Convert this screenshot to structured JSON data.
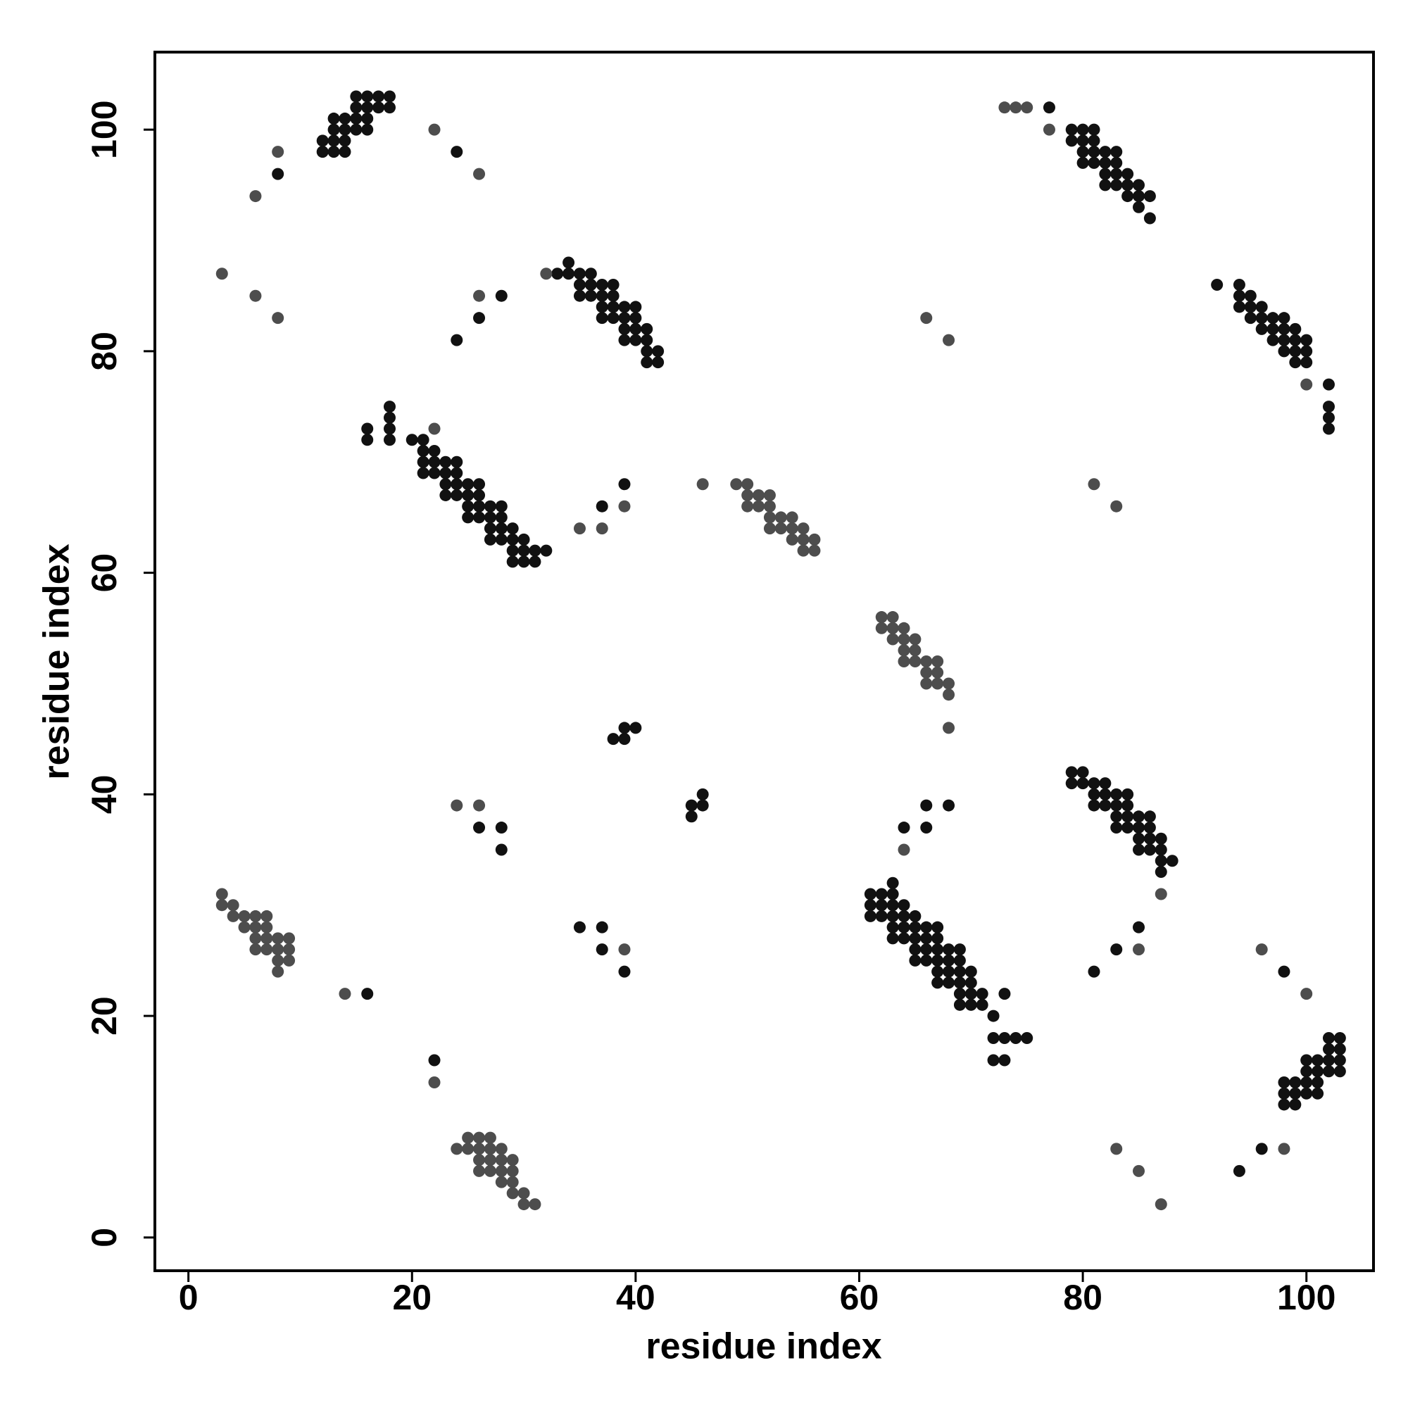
{
  "chart_data": {
    "type": "scatter",
    "xlabel": "residue index",
    "ylabel": "residue index",
    "xlim": [
      -3,
      106
    ],
    "ylim": [
      -3,
      107
    ],
    "xticks": [
      0,
      20,
      40,
      60,
      80,
      100
    ],
    "yticks": [
      0,
      20,
      40,
      60,
      80,
      100
    ],
    "series": [
      {
        "color": "#111111",
        "x": [
          12,
          13,
          14,
          12,
          13,
          14,
          13,
          14,
          15,
          16,
          13,
          14,
          15,
          16,
          15,
          16,
          17,
          18,
          15,
          16,
          17,
          18,
          8,
          24,
          28,
          26,
          24,
          77,
          34,
          33,
          34,
          35,
          36,
          35,
          36,
          37,
          38,
          35,
          36,
          37,
          38,
          37,
          38,
          39,
          40,
          37,
          38,
          39,
          40,
          39,
          40,
          41,
          39,
          40,
          41,
          41,
          42,
          41,
          42,
          79,
          80,
          81,
          79,
          80,
          81,
          80,
          81,
          82,
          83,
          80,
          81,
          82,
          83,
          82,
          83,
          84,
          82,
          83,
          84,
          85,
          84,
          85,
          86,
          85,
          86,
          92,
          94,
          94,
          95,
          94,
          95,
          96,
          95,
          96,
          97,
          98,
          96,
          97,
          98,
          99,
          97,
          98,
          99,
          100,
          98,
          99,
          100,
          99,
          100,
          102,
          102,
          102,
          102,
          16,
          16,
          18,
          18,
          18,
          18,
          20,
          21,
          21,
          22,
          21,
          22,
          23,
          24,
          21,
          22,
          23,
          24,
          23,
          24,
          25,
          26,
          23,
          24,
          25,
          26,
          25,
          26,
          27,
          28,
          25,
          26,
          27,
          28,
          27,
          28,
          29,
          27,
          28,
          29,
          30,
          29,
          30,
          31,
          32,
          29,
          30,
          31,
          37,
          39,
          38,
          39,
          39,
          40,
          45,
          45,
          46,
          46,
          26,
          28,
          28,
          66,
          68,
          64,
          66,
          85,
          83,
          81,
          16,
          22,
          37,
          37,
          39,
          35,
          94,
          96,
          98,
          79,
          80,
          79,
          80,
          81,
          82,
          81,
          82,
          83,
          84,
          81,
          82,
          83,
          84,
          83,
          84,
          85,
          86,
          83,
          84,
          85,
          86,
          85,
          86,
          87,
          85,
          86,
          87,
          87,
          88,
          87,
          63,
          61,
          62,
          63,
          61,
          62,
          63,
          64,
          61,
          62,
          63,
          64,
          65,
          63,
          64,
          65,
          66,
          67,
          63,
          64,
          65,
          66,
          67,
          65,
          66,
          67,
          68,
          69,
          65,
          66,
          67,
          68,
          69,
          67,
          68,
          69,
          70,
          67,
          68,
          69,
          70,
          69,
          70,
          71,
          73,
          69,
          70,
          71,
          72,
          72,
          73,
          74,
          75,
          72,
          73,
          102,
          103,
          102,
          103,
          100,
          101,
          102,
          103,
          100,
          101,
          102,
          103,
          98,
          99,
          100,
          101,
          98,
          99,
          100,
          101,
          98,
          99
        ],
        "y": [
          98,
          98,
          98,
          99,
          99,
          99,
          100,
          100,
          100,
          100,
          101,
          101,
          101,
          101,
          102,
          102,
          102,
          102,
          103,
          103,
          103,
          103,
          96,
          98,
          85,
          83,
          81,
          102,
          88,
          87,
          87,
          87,
          87,
          86,
          86,
          86,
          86,
          85,
          85,
          85,
          85,
          84,
          84,
          84,
          84,
          83,
          83,
          83,
          83,
          82,
          82,
          82,
          81,
          81,
          81,
          80,
          80,
          79,
          79,
          100,
          100,
          100,
          99,
          99,
          99,
          98,
          98,
          98,
          98,
          97,
          97,
          97,
          97,
          96,
          96,
          96,
          95,
          95,
          95,
          95,
          94,
          94,
          94,
          93,
          92,
          86,
          86,
          85,
          85,
          84,
          84,
          84,
          83,
          83,
          83,
          83,
          82,
          82,
          82,
          82,
          81,
          81,
          81,
          81,
          80,
          80,
          80,
          79,
          79,
          77,
          75,
          74,
          73,
          73,
          72,
          75,
          74,
          73,
          72,
          72,
          72,
          71,
          71,
          70,
          70,
          70,
          70,
          69,
          69,
          69,
          69,
          68,
          68,
          68,
          68,
          67,
          67,
          67,
          67,
          66,
          66,
          66,
          66,
          65,
          65,
          65,
          65,
          64,
          64,
          64,
          63,
          63,
          63,
          63,
          62,
          62,
          62,
          62,
          61,
          61,
          61,
          66,
          68,
          45,
          45,
          46,
          46,
          39,
          38,
          40,
          39,
          37,
          37,
          35,
          39,
          39,
          37,
          37,
          28,
          26,
          24,
          22,
          16,
          28,
          26,
          24,
          28,
          6,
          8,
          24,
          42,
          42,
          41,
          41,
          41,
          41,
          40,
          40,
          40,
          40,
          39,
          39,
          39,
          39,
          38,
          38,
          38,
          38,
          37,
          37,
          37,
          37,
          36,
          36,
          36,
          35,
          35,
          35,
          34,
          34,
          33,
          32,
          31,
          31,
          31,
          30,
          30,
          30,
          30,
          29,
          29,
          29,
          29,
          29,
          28,
          28,
          28,
          28,
          28,
          27,
          27,
          27,
          27,
          27,
          26,
          26,
          26,
          26,
          26,
          25,
          25,
          25,
          25,
          25,
          24,
          24,
          24,
          24,
          23,
          23,
          23,
          23,
          22,
          22,
          22,
          22,
          21,
          21,
          21,
          20,
          18,
          18,
          18,
          18,
          16,
          16,
          18,
          18,
          17,
          17,
          16,
          16,
          16,
          16,
          15,
          15,
          15,
          15,
          14,
          14,
          14,
          14,
          13,
          13,
          13,
          13,
          12,
          12
        ]
      },
      {
        "color": "#4d4d4d",
        "x": [
          8,
          6,
          22,
          26,
          3,
          6,
          8,
          26,
          32,
          73,
          74,
          75,
          77,
          100,
          66,
          68,
          22,
          35,
          37,
          39,
          46,
          68,
          81,
          83,
          24,
          26,
          64,
          85,
          39,
          14,
          22,
          83,
          85,
          87,
          98,
          96,
          100,
          87,
          49,
          50,
          50,
          51,
          52,
          50,
          51,
          52,
          52,
          53,
          54,
          52,
          53,
          54,
          55,
          54,
          55,
          56,
          55,
          56,
          62,
          63,
          62,
          63,
          64,
          63,
          64,
          65,
          64,
          65,
          64,
          65,
          66,
          67,
          66,
          67,
          66,
          67,
          68,
          68,
          3,
          3,
          4,
          4,
          5,
          6,
          7,
          5,
          6,
          7,
          6,
          7,
          8,
          9,
          6,
          7,
          8,
          9,
          8,
          9,
          8,
          25,
          26,
          27,
          24,
          25,
          26,
          27,
          28,
          26,
          27,
          28,
          29,
          26,
          27,
          28,
          29,
          28,
          29,
          29,
          30,
          30,
          31
        ],
        "y": [
          98,
          94,
          100,
          96,
          87,
          85,
          83,
          85,
          87,
          102,
          102,
          102,
          100,
          77,
          83,
          81,
          73,
          64,
          64,
          66,
          68,
          46,
          68,
          66,
          39,
          39,
          35,
          26,
          26,
          22,
          14,
          8,
          6,
          3,
          8,
          26,
          22,
          31,
          68,
          68,
          67,
          67,
          67,
          66,
          66,
          66,
          65,
          65,
          65,
          64,
          64,
          64,
          64,
          63,
          63,
          63,
          62,
          62,
          56,
          56,
          55,
          55,
          55,
          54,
          54,
          54,
          53,
          53,
          52,
          52,
          52,
          52,
          51,
          51,
          50,
          50,
          50,
          49,
          31,
          30,
          30,
          29,
          29,
          29,
          29,
          28,
          28,
          28,
          27,
          27,
          27,
          27,
          26,
          26,
          26,
          26,
          25,
          25,
          24,
          9,
          9,
          9,
          8,
          8,
          8,
          8,
          8,
          7,
          7,
          7,
          7,
          6,
          6,
          6,
          6,
          5,
          5,
          4,
          4,
          3,
          3
        ]
      }
    ]
  }
}
